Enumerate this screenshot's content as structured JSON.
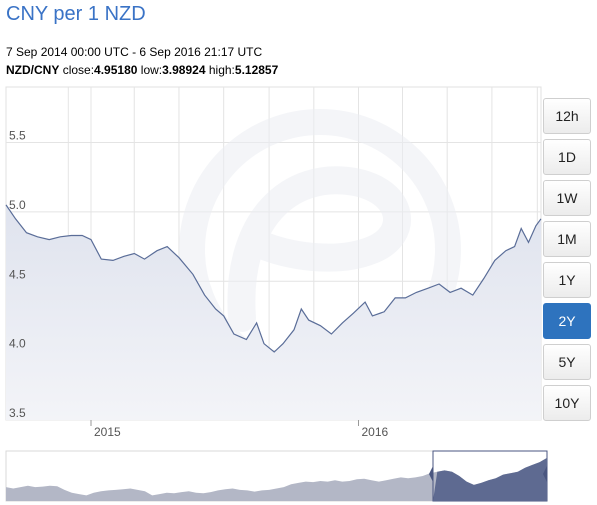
{
  "header": {
    "title": "CNY per 1 NZD",
    "date_range": "7 Sep 2014 00:00 UTC - 6 Sep 2016 21:17 UTC",
    "pair": "NZD/CNY",
    "close_label": "close:",
    "close_value": "4.95180",
    "low_label": "low:",
    "low_value": "3.98924",
    "high_label": "high:",
    "high_value": "5.12857"
  },
  "timeframes": [
    {
      "label": "12h",
      "active": false
    },
    {
      "label": "1D",
      "active": false
    },
    {
      "label": "1W",
      "active": false
    },
    {
      "label": "1M",
      "active": false
    },
    {
      "label": "1Y",
      "active": false
    },
    {
      "label": "2Y",
      "active": true
    },
    {
      "label": "5Y",
      "active": false
    },
    {
      "label": "10Y",
      "active": false
    }
  ],
  "colors": {
    "line": "#5a6d98",
    "fill_top": "#dfe3ee",
    "fill_bottom": "#f3f4f8",
    "nav_fill": "#b3b7c6",
    "nav_selection": "#5e6a91",
    "grid": "#e4e4e4",
    "active_button": "#2e73be"
  },
  "chart_data": {
    "type": "area",
    "title": "CNY per 1 NZD",
    "series": [
      {
        "name": "NZD/CNY",
        "values": [
          [
            "2014-09-07",
            5.05
          ],
          [
            "2014-09-20",
            4.95
          ],
          [
            "2014-10-05",
            4.85
          ],
          [
            "2014-10-20",
            4.82
          ],
          [
            "2014-11-05",
            4.8
          ],
          [
            "2014-11-20",
            4.82
          ],
          [
            "2014-12-05",
            4.83
          ],
          [
            "2014-12-20",
            4.83
          ],
          [
            "2015-01-01",
            4.8
          ],
          [
            "2015-01-15",
            4.66
          ],
          [
            "2015-01-31",
            4.65
          ],
          [
            "2015-02-15",
            4.68
          ],
          [
            "2015-03-01",
            4.7
          ],
          [
            "2015-03-15",
            4.66
          ],
          [
            "2015-04-01",
            4.72
          ],
          [
            "2015-04-15",
            4.75
          ],
          [
            "2015-05-01",
            4.67
          ],
          [
            "2015-05-20",
            4.55
          ],
          [
            "2015-06-05",
            4.4
          ],
          [
            "2015-06-20",
            4.3
          ],
          [
            "2015-07-01",
            4.25
          ],
          [
            "2015-07-15",
            4.12
          ],
          [
            "2015-08-01",
            4.08
          ],
          [
            "2015-08-15",
            4.2
          ],
          [
            "2015-08-25",
            4.05
          ],
          [
            "2015-09-08",
            3.99
          ],
          [
            "2015-09-20",
            4.05
          ],
          [
            "2015-10-05",
            4.15
          ],
          [
            "2015-10-15",
            4.3
          ],
          [
            "2015-10-25",
            4.22
          ],
          [
            "2015-11-10",
            4.18
          ],
          [
            "2015-11-25",
            4.12
          ],
          [
            "2015-12-10",
            4.2
          ],
          [
            "2015-12-25",
            4.27
          ],
          [
            "2016-01-10",
            4.35
          ],
          [
            "2016-01-20",
            4.25
          ],
          [
            "2016-02-05",
            4.28
          ],
          [
            "2016-02-20",
            4.38
          ],
          [
            "2016-03-05",
            4.38
          ],
          [
            "2016-03-20",
            4.42
          ],
          [
            "2016-04-05",
            4.45
          ],
          [
            "2016-04-20",
            4.48
          ],
          [
            "2016-05-05",
            4.42
          ],
          [
            "2016-05-20",
            4.45
          ],
          [
            "2016-06-05",
            4.4
          ],
          [
            "2016-06-20",
            4.52
          ],
          [
            "2016-07-05",
            4.65
          ],
          [
            "2016-07-20",
            4.72
          ],
          [
            "2016-08-01",
            4.75
          ],
          [
            "2016-08-10",
            4.88
          ],
          [
            "2016-08-20",
            4.78
          ],
          [
            "2016-08-30",
            4.9
          ],
          [
            "2016-09-06",
            4.95
          ]
        ]
      }
    ],
    "xlabel": "",
    "ylabel": "",
    "x_ticks": [
      "2015",
      "2016"
    ],
    "y_ticks": [
      "3.5",
      "4.0",
      "4.5",
      "5.0",
      "5.5"
    ],
    "ylim": [
      3.5,
      5.9
    ],
    "xlim": [
      "2014-09-07",
      "2016-09-06"
    ],
    "grid": true,
    "watermark": "xe",
    "navigator": {
      "selected_range": [
        "2014-09-07",
        "2016-09-06"
      ],
      "values": [
        3.9,
        3.85,
        3.9,
        3.95,
        3.9,
        3.92,
        3.95,
        3.93,
        3.8,
        3.7,
        3.65,
        3.6,
        3.7,
        3.75,
        3.78,
        3.8,
        3.82,
        3.85,
        3.8,
        3.75,
        3.6,
        3.65,
        3.7,
        3.68,
        3.72,
        3.75,
        3.7,
        3.68,
        3.72,
        3.78,
        3.82,
        3.85,
        3.8,
        3.78,
        3.74,
        3.78,
        3.8,
        3.85,
        3.9,
        4.0,
        4.05,
        4.1,
        4.08,
        4.12,
        4.1,
        4.15,
        4.1,
        4.12,
        4.18,
        4.2,
        4.15,
        4.1,
        4.15,
        4.2,
        4.25,
        4.22,
        4.25,
        4.3,
        4.4,
        4.45,
        4.5,
        4.45,
        4.3,
        4.1,
        3.98,
        4.05,
        4.15,
        4.22,
        4.35,
        4.4,
        4.45,
        4.6,
        4.7,
        4.8,
        4.95
      ]
    }
  }
}
